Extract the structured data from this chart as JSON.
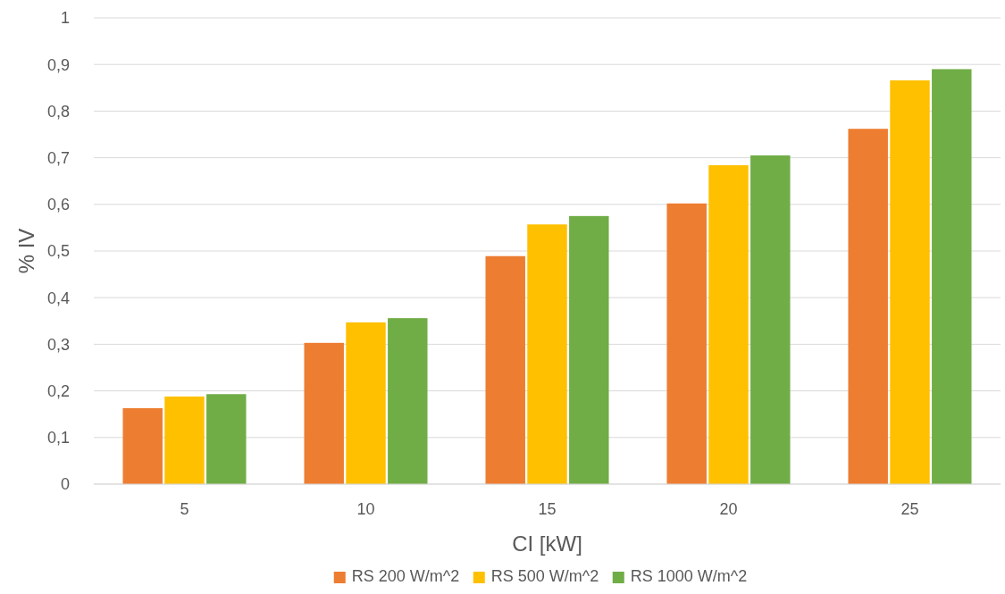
{
  "chart_data": {
    "type": "bar",
    "xlabel": "CI [kW]",
    "ylabel": "% IV",
    "categories": [
      "5",
      "10",
      "15",
      "20",
      "25"
    ],
    "series": [
      {
        "name": "RS 200 W/m^2",
        "color": "#ed7d31",
        "values": [
          0.163,
          0.303,
          0.489,
          0.602,
          0.762
        ]
      },
      {
        "name": "RS 500 W/m^2",
        "color": "#ffc000",
        "values": [
          0.188,
          0.347,
          0.557,
          0.684,
          0.866
        ]
      },
      {
        "name": "RS 1000 W/m^2",
        "color": "#70ad47",
        "values": [
          0.193,
          0.356,
          0.575,
          0.705,
          0.89
        ]
      }
    ],
    "ylim": [
      0,
      1
    ],
    "yticks": [
      0,
      {
        "value": 0.1,
        "label": "0,1"
      },
      {
        "value": 0.2,
        "label": "0,2"
      },
      {
        "value": 0.3,
        "label": "0,3"
      },
      {
        "value": 0.4,
        "label": "0,4"
      },
      {
        "value": 0.5,
        "label": "0,5"
      },
      {
        "value": 0.6,
        "label": "0,6"
      },
      {
        "value": 0.7,
        "label": "0,7"
      },
      {
        "value": 0.8,
        "label": "0,8"
      },
      {
        "value": 0.9,
        "label": "0,9"
      },
      1
    ],
    "grid": "y",
    "legend": "bottom"
  }
}
